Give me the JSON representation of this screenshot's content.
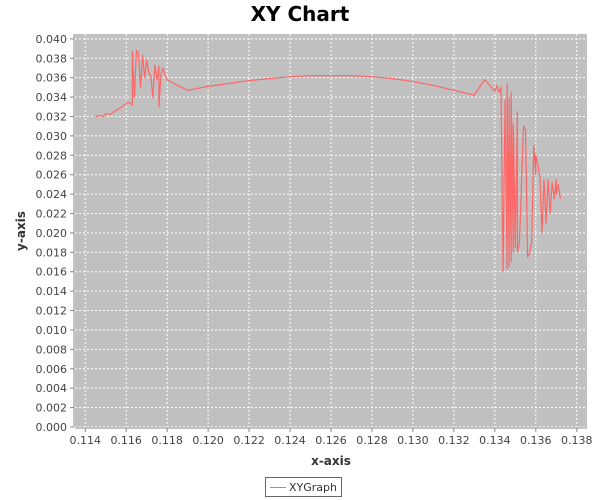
{
  "chart_data": {
    "type": "line",
    "title": "XY Chart",
    "xlabel": "x-axis",
    "ylabel": "y-axis",
    "xlim": [
      0.1135,
      0.1385
    ],
    "ylim": [
      0.0,
      0.0405
    ],
    "xticks": [
      "0.114",
      "0.116",
      "0.118",
      "0.120",
      "0.122",
      "0.124",
      "0.126",
      "0.128",
      "0.130",
      "0.132",
      "0.134",
      "0.136",
      "0.138"
    ],
    "yticks": [
      "0.000",
      "0.002",
      "0.004",
      "0.006",
      "0.008",
      "0.010",
      "0.012",
      "0.014",
      "0.016",
      "0.018",
      "0.020",
      "0.022",
      "0.024",
      "0.026",
      "0.028",
      "0.030",
      "0.032",
      "0.034",
      "0.036",
      "0.038",
      "0.040"
    ],
    "grid": true,
    "legend_position": "bottom",
    "colors": {
      "plot_background": "#c0c0c0",
      "grid": "#ffffff",
      "series": "#ff6666"
    },
    "series": [
      {
        "name": "XYGraph",
        "x": [
          0.1145,
          0.1147,
          0.1149,
          0.115,
          0.1152,
          0.1154,
          0.1158,
          0.1161,
          0.1163,
          0.1163,
          0.1164,
          0.1165,
          0.1166,
          0.1167,
          0.1168,
          0.1169,
          0.117,
          0.1171,
          0.1172,
          0.1173,
          0.1174,
          0.1175,
          0.1176,
          0.1176,
          0.1177,
          0.1178,
          0.1179,
          0.118,
          0.1185,
          0.119,
          0.12,
          0.121,
          0.122,
          0.123,
          0.124,
          0.125,
          0.126,
          0.127,
          0.128,
          0.129,
          0.13,
          0.131,
          0.132,
          0.133,
          0.1335,
          0.134,
          0.1341,
          0.1342,
          0.1343,
          0.1344,
          0.1345,
          0.1346,
          0.1346,
          0.1347,
          0.1347,
          0.1348,
          0.1348,
          0.1349,
          0.1349,
          0.135,
          0.1351,
          0.1351,
          0.1352,
          0.1354,
          0.1355,
          0.1356,
          0.1357,
          0.1358,
          0.1359,
          0.136,
          0.136,
          0.1361,
          0.1362,
          0.1363,
          0.1364,
          0.1365,
          0.1366,
          0.1367,
          0.1368,
          0.1369,
          0.137,
          0.137,
          0.1371,
          0.1372
        ],
        "y": [
          0.032,
          0.0321,
          0.032,
          0.0323,
          0.0322,
          0.0325,
          0.033,
          0.0335,
          0.0332,
          0.0387,
          0.034,
          0.0388,
          0.0385,
          0.035,
          0.0383,
          0.036,
          0.0378,
          0.0365,
          0.0362,
          0.034,
          0.0373,
          0.0358,
          0.0372,
          0.033,
          0.0364,
          0.037,
          0.0362,
          0.0358,
          0.0352,
          0.0347,
          0.0351,
          0.0354,
          0.0357,
          0.0359,
          0.0361,
          0.0362,
          0.0362,
          0.0362,
          0.0361,
          0.0359,
          0.0356,
          0.0352,
          0.0347,
          0.0342,
          0.0358,
          0.0346,
          0.0352,
          0.0345,
          0.035,
          0.016,
          0.0337,
          0.0163,
          0.0354,
          0.0165,
          0.034,
          0.017,
          0.0345,
          0.018,
          0.0312,
          0.0185,
          0.0325,
          0.018,
          0.019,
          0.031,
          0.0306,
          0.0175,
          0.018,
          0.019,
          0.029,
          0.026,
          0.028,
          0.027,
          0.0258,
          0.02,
          0.0255,
          0.021,
          0.0255,
          0.022,
          0.0252,
          0.0235,
          0.0255,
          0.024,
          0.025,
          0.0235
        ]
      }
    ]
  }
}
